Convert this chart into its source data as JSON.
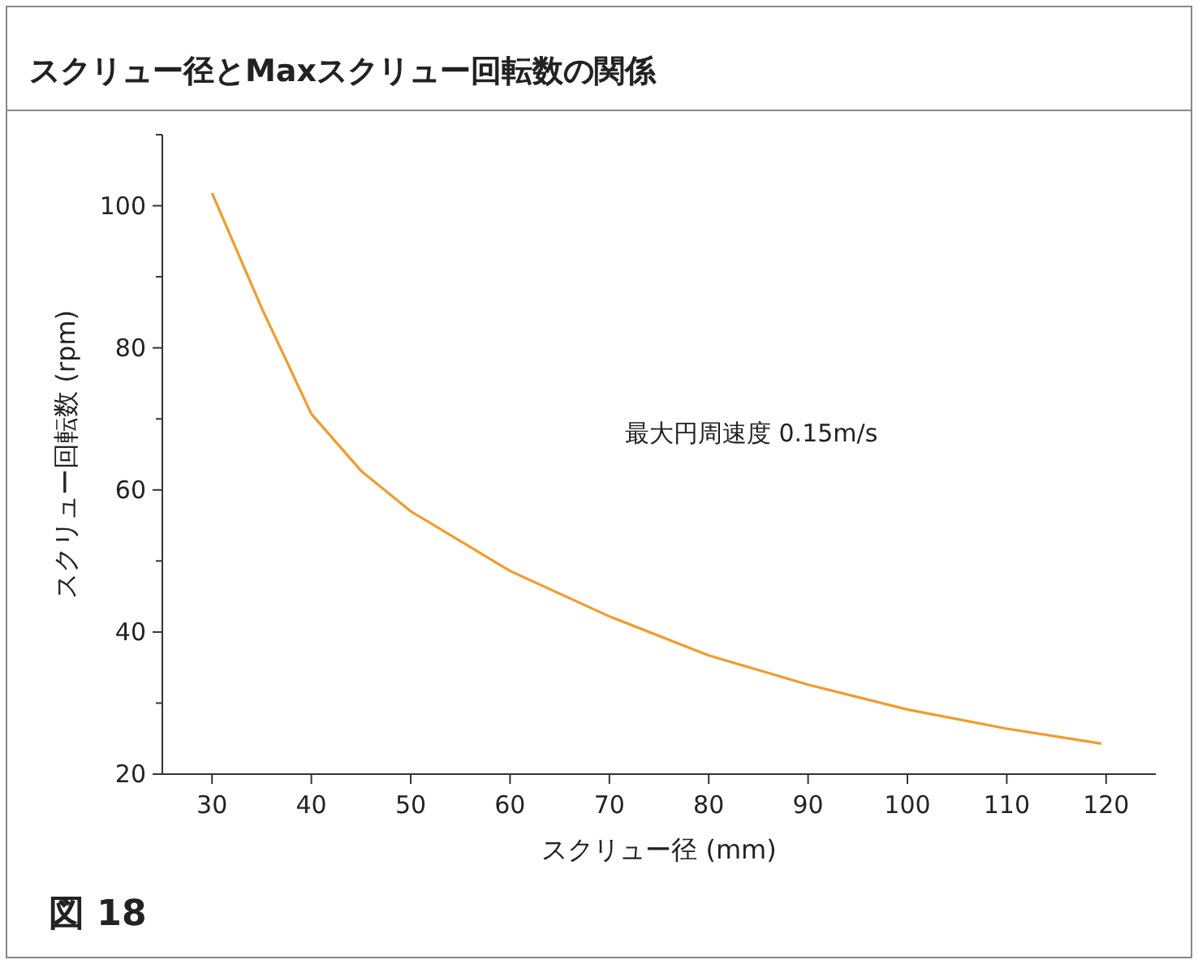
{
  "chart_data": {
    "type": "line",
    "title": "スクリュー径とMaxスクリュー回転数の関係",
    "xlabel": "スクリュー径 (mm)",
    "ylabel": "スクリュー回転数 (rpm)",
    "annotations": [
      "最大円周速度 0.15m/s",
      "図 18"
    ],
    "x": [
      30,
      35,
      40,
      45,
      50,
      60,
      70,
      80,
      90,
      100,
      110,
      119.5
    ],
    "series": [
      {
        "color": "#f39a2c",
        "values": [
          101.8,
          85.6,
          70.7,
          62.7,
          57,
          48.6,
          42.2,
          36.7,
          32.6,
          29.1,
          26.4,
          24.3
        ]
      }
    ],
    "xlim": [
      25,
      125
    ],
    "xticks": [
      30,
      40,
      50,
      60,
      70,
      80,
      90,
      100,
      110,
      120
    ],
    "ylim": [
      20,
      110
    ],
    "yticks": [
      20,
      {
        "value": 30,
        "label": null
      },
      40,
      {
        "value": 50,
        "label": null
      },
      60,
      {
        "value": 70,
        "label": null
      },
      80,
      {
        "value": 90,
        "label": null
      },
      100,
      {
        "value": 110,
        "label": null
      }
    ],
    "grid": false,
    "marker": "none",
    "line_style": "solid"
  }
}
